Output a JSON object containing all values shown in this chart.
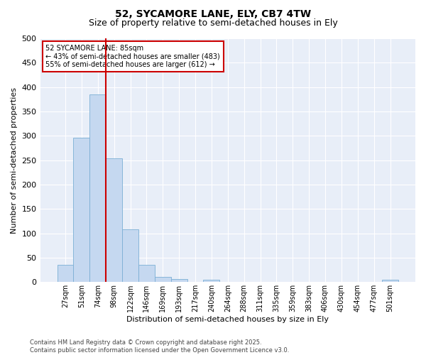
{
  "title_line1": "52, SYCAMORE LANE, ELY, CB7 4TW",
  "title_line2": "Size of property relative to semi-detached houses in Ely",
  "xlabel": "Distribution of semi-detached houses by size in Ely",
  "ylabel": "Number of semi-detached properties",
  "categories": [
    "27sqm",
    "51sqm",
    "74sqm",
    "98sqm",
    "122sqm",
    "146sqm",
    "169sqm",
    "193sqm",
    "217sqm",
    "240sqm",
    "264sqm",
    "288sqm",
    "311sqm",
    "335sqm",
    "359sqm",
    "383sqm",
    "406sqm",
    "430sqm",
    "454sqm",
    "477sqm",
    "501sqm"
  ],
  "values": [
    36,
    296,
    385,
    254,
    108,
    36,
    11,
    6,
    0,
    5,
    0,
    0,
    0,
    0,
    0,
    0,
    0,
    0,
    0,
    0,
    5
  ],
  "bar_color": "#c5d8f0",
  "bar_edge_color": "#7bafd4",
  "vline_index": 2.5,
  "vline_color": "#cc0000",
  "annotation_title": "52 SYCAMORE LANE: 85sqm",
  "annotation_line1": "← 43% of semi-detached houses are smaller (483)",
  "annotation_line2": "55% of semi-detached houses are larger (612) →",
  "annotation_box_color": "#cc0000",
  "ylim": [
    0,
    500
  ],
  "yticks": [
    0,
    50,
    100,
    150,
    200,
    250,
    300,
    350,
    400,
    450,
    500
  ],
  "footnote": "Contains HM Land Registry data © Crown copyright and database right 2025.\nContains public sector information licensed under the Open Government Licence v3.0.",
  "bg_color": "#ffffff",
  "plot_bg_color": "#e8eef8",
  "grid_color": "#ffffff",
  "title1_fontsize": 10,
  "title2_fontsize": 9,
  "tick_fontsize": 7,
  "ylabel_fontsize": 8,
  "xlabel_fontsize": 8,
  "ann_fontsize": 7,
  "footnote_fontsize": 6
}
